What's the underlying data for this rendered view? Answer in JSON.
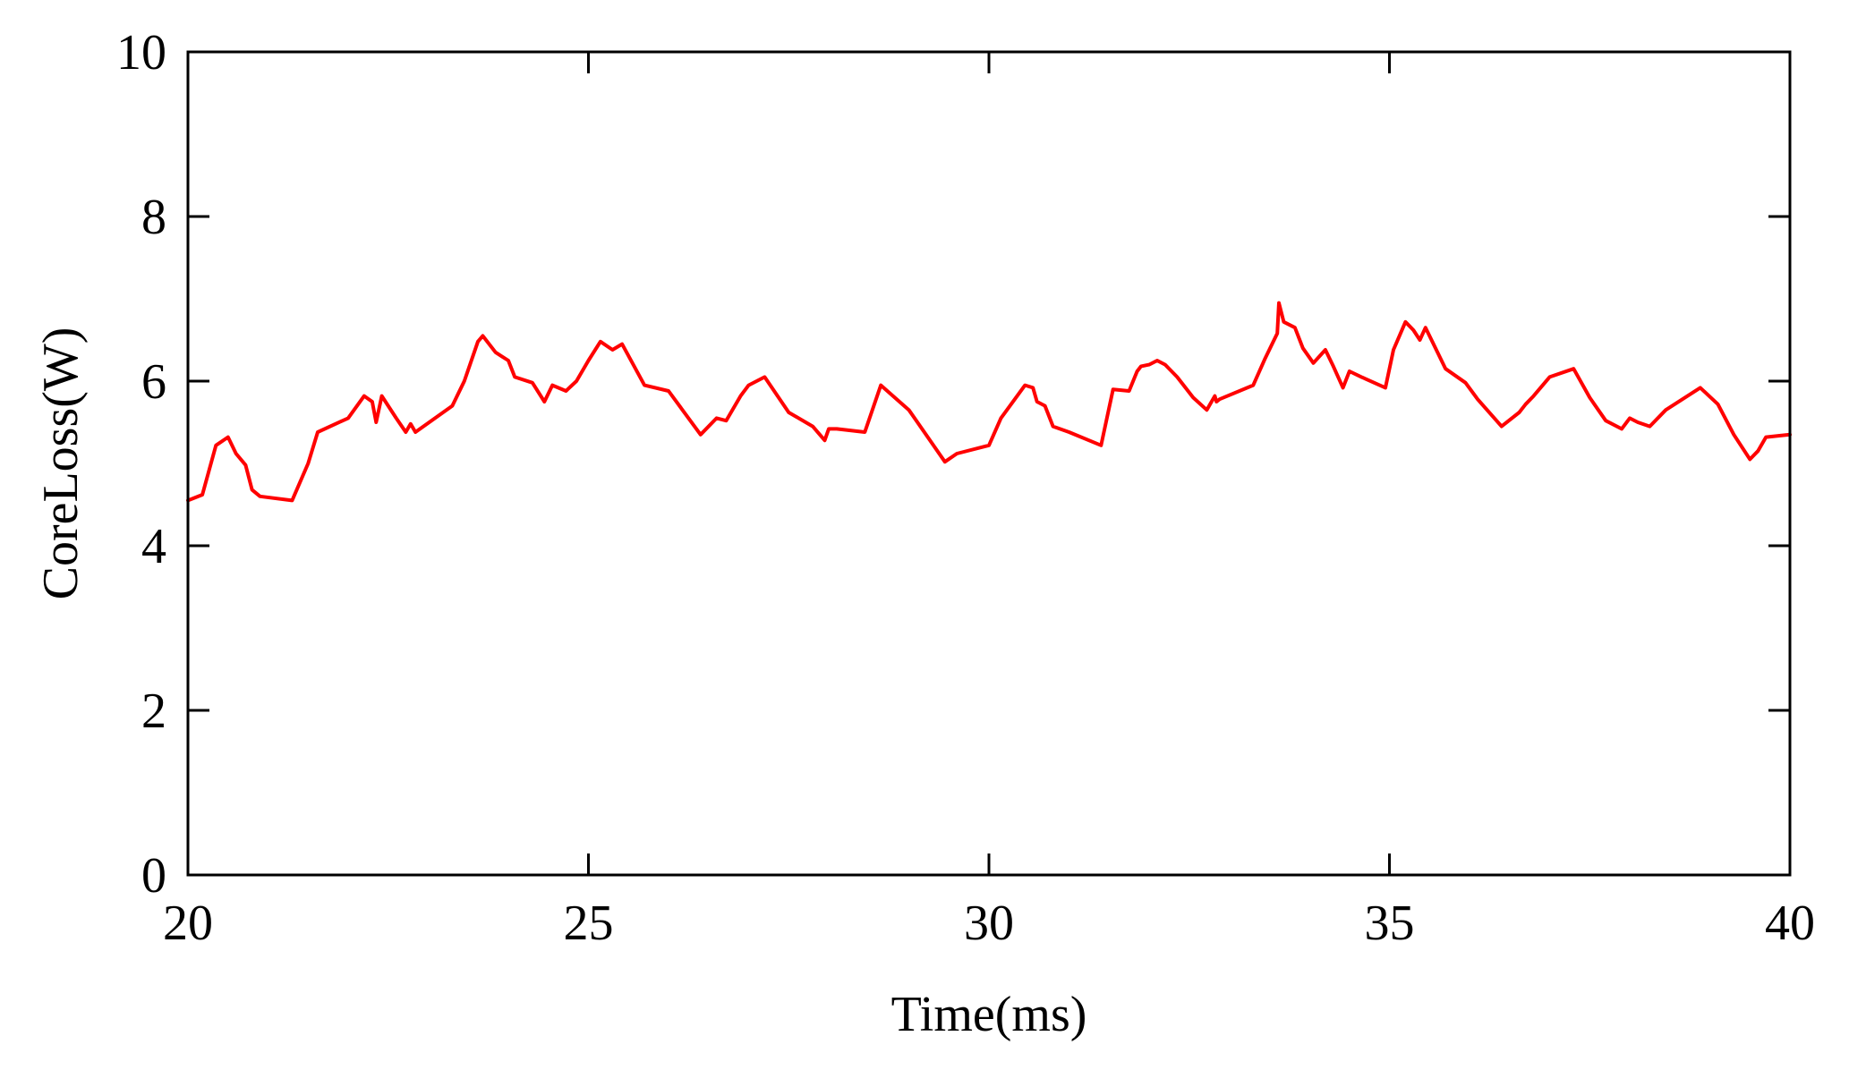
{
  "chart_data": {
    "type": "line",
    "title": "",
    "xlabel": "Time(ms)",
    "ylabel": "CoreLoss(W)",
    "xlim": [
      20,
      40
    ],
    "ylim": [
      0,
      10
    ],
    "xticks": [
      20,
      25,
      30,
      35,
      40
    ],
    "yticks": [
      0,
      2,
      4,
      6,
      8,
      10
    ],
    "grid": false,
    "legend": "none",
    "series": [
      {
        "color": "#ff0000",
        "x": [
          20.0,
          20.18,
          20.35,
          20.5,
          20.6,
          20.72,
          20.8,
          20.9,
          21.3,
          21.5,
          21.62,
          22.0,
          22.2,
          22.3,
          22.35,
          22.42,
          22.6,
          22.72,
          22.78,
          22.84,
          23.3,
          23.45,
          23.62,
          23.68,
          23.84,
          23.92,
          24.0,
          24.08,
          24.3,
          24.45,
          24.55,
          24.72,
          24.85,
          25.0,
          25.15,
          25.3,
          25.42,
          25.7,
          26.0,
          26.4,
          26.6,
          26.72,
          26.9,
          27.0,
          27.2,
          27.5,
          27.8,
          27.95,
          28.0,
          28.1,
          28.45,
          28.65,
          29.0,
          29.45,
          29.6,
          30.0,
          30.15,
          30.45,
          30.55,
          30.6,
          30.7,
          30.8,
          31.0,
          31.4,
          31.55,
          31.75,
          31.85,
          31.9,
          32.0,
          32.1,
          32.2,
          32.35,
          32.55,
          32.72,
          32.82,
          32.84,
          32.88,
          33.3,
          33.45,
          33.6,
          33.62,
          33.68,
          33.82,
          33.92,
          34.05,
          34.2,
          34.3,
          34.42,
          34.5,
          34.65,
          34.95,
          35.05,
          35.2,
          35.3,
          35.38,
          35.45,
          35.7,
          35.95,
          36.1,
          36.4,
          36.62,
          36.7,
          36.8,
          37.0,
          37.3,
          37.5,
          37.7,
          37.9,
          38.0,
          38.1,
          38.25,
          38.45,
          38.88,
          39.1,
          39.3,
          39.5,
          39.6,
          39.7,
          40.0
        ],
        "y": [
          4.55,
          4.62,
          5.22,
          5.32,
          5.12,
          4.98,
          4.68,
          4.6,
          4.55,
          5.0,
          5.38,
          5.55,
          5.82,
          5.75,
          5.5,
          5.82,
          5.55,
          5.38,
          5.48,
          5.38,
          5.7,
          6.0,
          6.48,
          6.55,
          6.35,
          6.3,
          6.25,
          6.05,
          5.98,
          5.75,
          5.95,
          5.88,
          6.0,
          6.25,
          6.48,
          6.38,
          6.45,
          5.95,
          5.88,
          5.35,
          5.55,
          5.52,
          5.82,
          5.95,
          6.05,
          5.62,
          5.45,
          5.28,
          5.42,
          5.42,
          5.38,
          5.95,
          5.65,
          5.02,
          5.12,
          5.22,
          5.55,
          5.95,
          5.92,
          5.75,
          5.7,
          5.45,
          5.38,
          5.22,
          5.9,
          5.88,
          6.12,
          6.18,
          6.2,
          6.25,
          6.2,
          6.05,
          5.8,
          5.65,
          5.82,
          5.75,
          5.78,
          5.95,
          6.28,
          6.58,
          6.95,
          6.72,
          6.65,
          6.4,
          6.22,
          6.38,
          6.18,
          5.92,
          6.12,
          6.05,
          5.92,
          6.38,
          6.72,
          6.62,
          6.5,
          6.65,
          6.15,
          5.98,
          5.78,
          5.45,
          5.62,
          5.72,
          5.82,
          6.05,
          6.15,
          5.8,
          5.52,
          5.42,
          5.55,
          5.5,
          5.45,
          5.65,
          5.92,
          5.72,
          5.35,
          5.05,
          5.15,
          5.32,
          5.35
        ]
      }
    ]
  }
}
